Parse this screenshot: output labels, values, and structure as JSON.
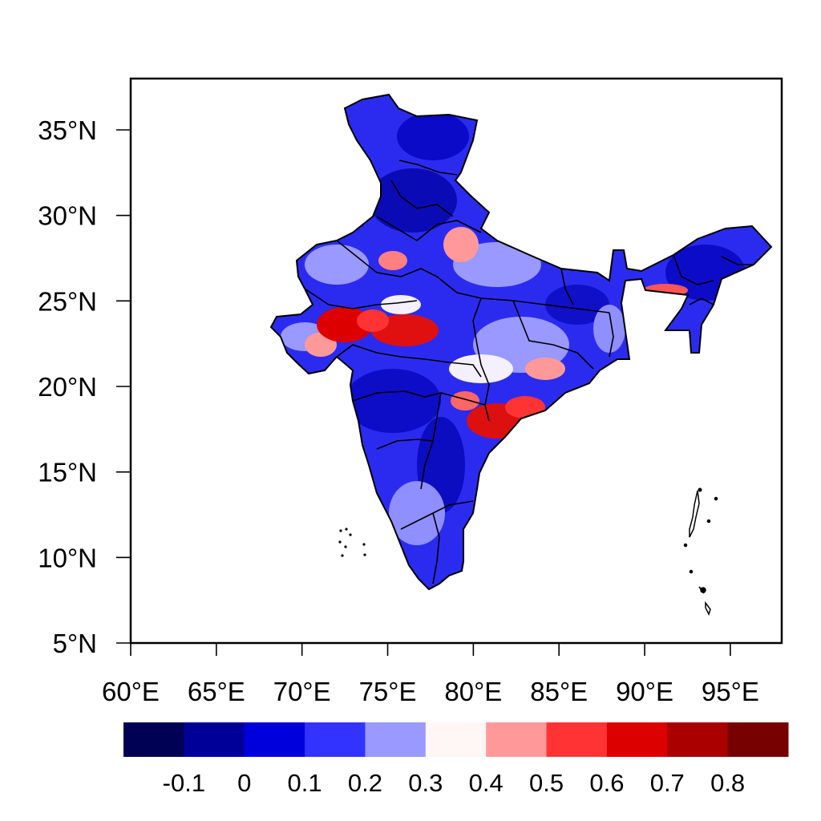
{
  "map": {
    "lat_range": [
      5,
      38
    ],
    "lon_range": [
      60,
      98
    ],
    "lat_ticks": [
      {
        "value": 5,
        "label": "5°N"
      },
      {
        "value": 10,
        "label": "10°N"
      },
      {
        "value": 15,
        "label": "15°N"
      },
      {
        "value": 20,
        "label": "20°N"
      },
      {
        "value": 25,
        "label": "25°N"
      },
      {
        "value": 30,
        "label": "30°N"
      },
      {
        "value": 35,
        "label": "35°N"
      }
    ],
    "lon_ticks": [
      {
        "value": 60,
        "label": "60°E"
      },
      {
        "value": 65,
        "label": "65°E"
      },
      {
        "value": 70,
        "label": "70°E"
      },
      {
        "value": 75,
        "label": "75°E"
      },
      {
        "value": 80,
        "label": "80°E"
      },
      {
        "value": 85,
        "label": "85°E"
      },
      {
        "value": 90,
        "label": "90°E"
      },
      {
        "value": 95,
        "label": "95°E"
      }
    ],
    "region": "India with state boundaries",
    "field_note": "Shaded field values range roughly -0.2 to 0.9; mostly blue (0–0.3) with red patches (0.5–0.8) over central India and Andhra Pradesh"
  },
  "colorbar": {
    "colors": [
      "#000055",
      "#000099",
      "#0000dd",
      "#3333ff",
      "#9999ff",
      "#fff6f6",
      "#ff9999",
      "#ff3333",
      "#dd0000",
      "#aa0000",
      "#770000"
    ],
    "labels": [
      "-0.1",
      "0",
      "0.1",
      "0.2",
      "0.3",
      "0.4",
      "0.5",
      "0.6",
      "0.7",
      "0.8"
    ]
  }
}
